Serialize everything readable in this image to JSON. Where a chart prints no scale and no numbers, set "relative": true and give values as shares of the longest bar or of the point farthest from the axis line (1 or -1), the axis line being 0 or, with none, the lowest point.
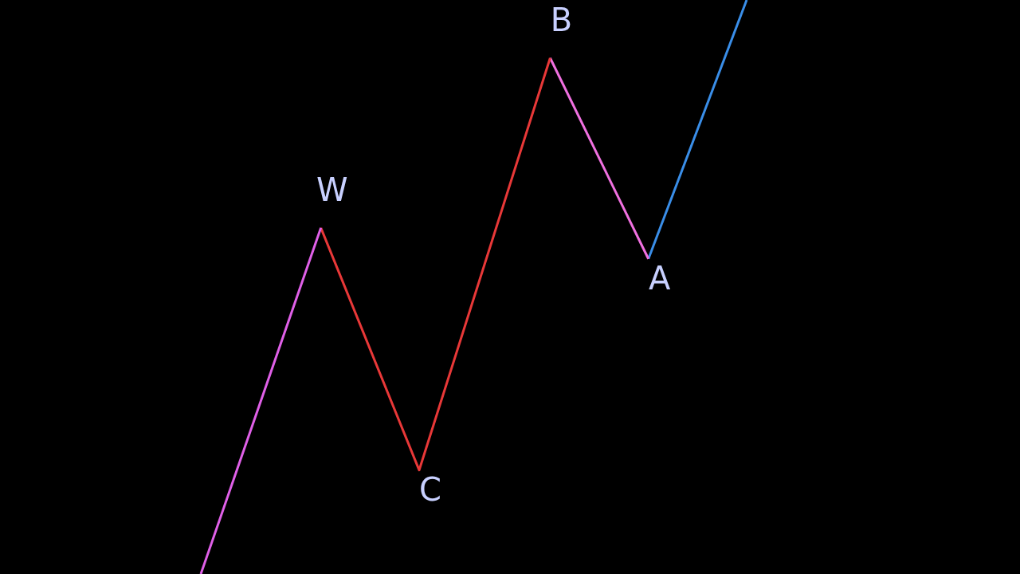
{
  "chart_data": {
    "type": "line",
    "relative": true,
    "categories": [
      null,
      null,
      null,
      null,
      null,
      null,
      null,
      null,
      null,
      null,
      null,
      null,
      null,
      null,
      null,
      null,
      null,
      null,
      null,
      null,
      null,
      null,
      null,
      null,
      null,
      null,
      null,
      null,
      null,
      null,
      null,
      null,
      null,
      null,
      null,
      null,
      null,
      null,
      null,
      null,
      null,
      null,
      null,
      null,
      null,
      null,
      null,
      null,
      null,
      null,
      null
    ],
    "series": [
      {
        "color": "#e060e8",
        "values": [
          0,
          null,
          null,
          null,
          null,
          null,
          null,
          null,
          null,
          null,
          null,
          0.603,
          null,
          null,
          null,
          null,
          null,
          null,
          null,
          null,
          null,
          null,
          null,
          null,
          null,
          null,
          null,
          null,
          null,
          null,
          null,
          null,
          null,
          null,
          null,
          null,
          null,
          null,
          null,
          null,
          null,
          null,
          null,
          null,
          null,
          null,
          null,
          null,
          null,
          null,
          null
        ]
      },
      {
        "color": "#e83838",
        "values": [
          null,
          null,
          null,
          null,
          null,
          null,
          null,
          null,
          null,
          null,
          null,
          0.603,
          null,
          null,
          null,
          null,
          null,
          null,
          null,
          null,
          0.181,
          null,
          null,
          null,
          null,
          null,
          null,
          null,
          null,
          null,
          null,
          null,
          0.899,
          null,
          null,
          null,
          null,
          null,
          null,
          null,
          null,
          null,
          null,
          null,
          null,
          null,
          null,
          null,
          null,
          null,
          null
        ]
      },
      {
        "color": "#f070e0",
        "values": [
          null,
          null,
          null,
          null,
          null,
          null,
          null,
          null,
          null,
          null,
          null,
          null,
          null,
          null,
          null,
          null,
          null,
          null,
          null,
          null,
          null,
          null,
          null,
          null,
          null,
          null,
          null,
          null,
          null,
          null,
          null,
          null,
          0.899,
          null,
          null,
          null,
          null,
          null,
          null,
          null,
          null,
          0.549,
          null,
          null,
          null,
          null,
          null,
          null,
          null,
          null,
          null
        ]
      },
      {
        "color": "#3a8ee8",
        "values": [
          null,
          null,
          null,
          null,
          null,
          null,
          null,
          null,
          null,
          null,
          null,
          null,
          null,
          null,
          null,
          null,
          null,
          null,
          null,
          null,
          null,
          null,
          null,
          null,
          null,
          null,
          null,
          null,
          null,
          null,
          null,
          null,
          null,
          null,
          null,
          null,
          null,
          null,
          null,
          null,
          null,
          0.549,
          null,
          null,
          null,
          null,
          null,
          null,
          null,
          null,
          1
        ]
      }
    ],
    "annotations": [
      "W",
      "C",
      "B",
      "A"
    ],
    "marker": "none",
    "line_style": "solid",
    "legend": false
  }
}
